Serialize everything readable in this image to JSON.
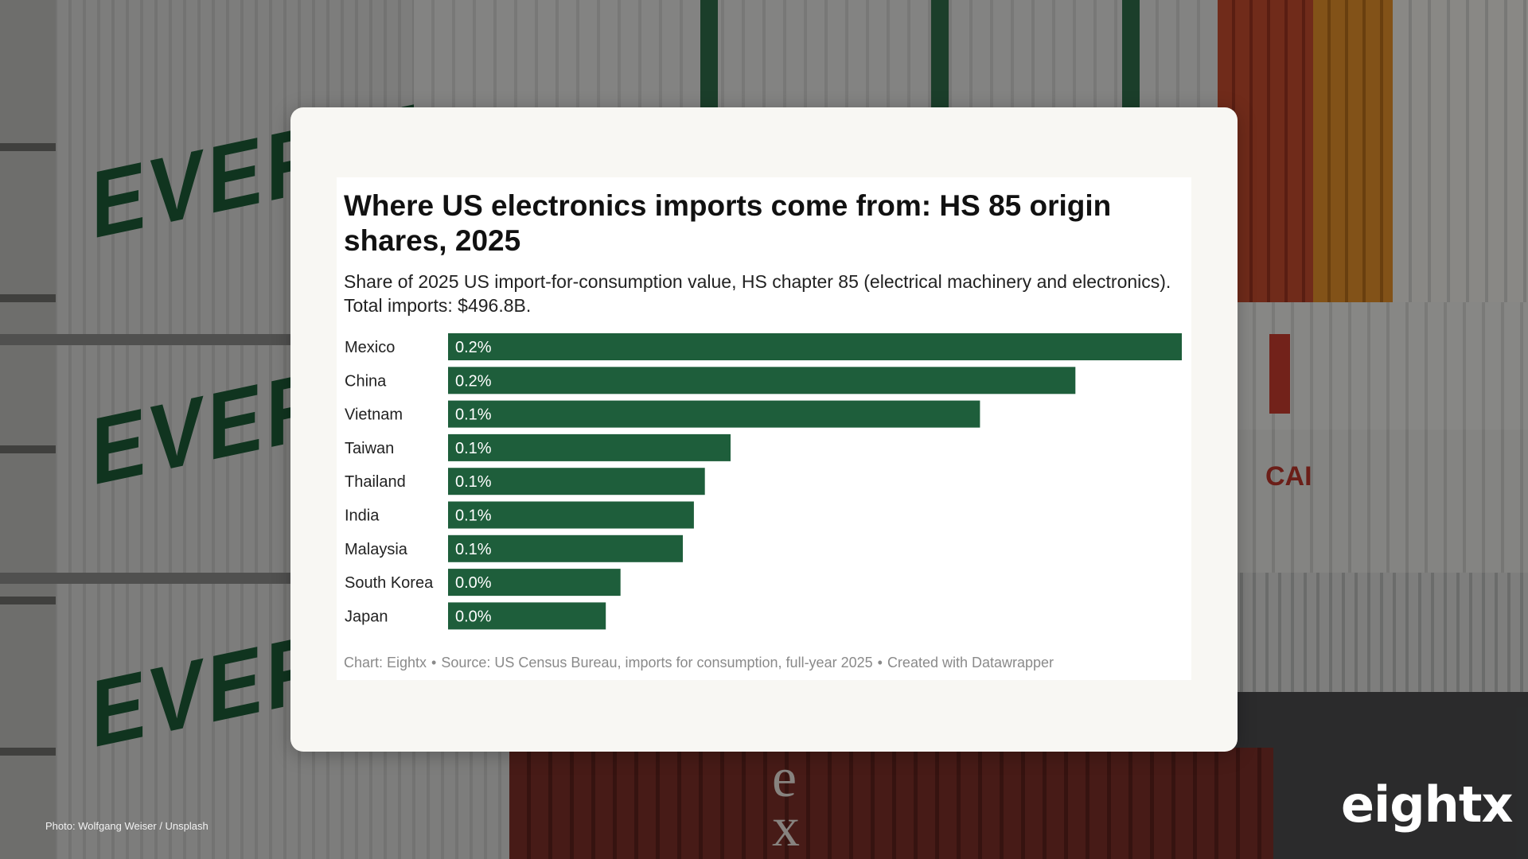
{
  "colors": {
    "bar": "#1e5e3b",
    "bar_label": "#ffffff",
    "category_label": "#222222",
    "card_background": "#f8f7f3",
    "footer_text": "#8a8a8a"
  },
  "chart_data": {
    "type": "bar",
    "orientation": "horizontal",
    "title": "Where US electronics imports come from: HS 85 origin shares, 2025",
    "subtitle": "Share of 2025 US import-for-consumption value, HS chapter 85 (electrical machinery and electronics). Total imports: $496.8B.",
    "categories": [
      "Mexico",
      "China",
      "Vietnam",
      "Taiwan",
      "Thailand",
      "India",
      "Malaysia",
      "South Korea",
      "Japan"
    ],
    "values": [
      0.2,
      0.171,
      0.145,
      0.077,
      0.07,
      0.067,
      0.064,
      0.047,
      0.043
    ],
    "value_labels": [
      "0.2%",
      "0.2%",
      "0.1%",
      "0.1%",
      "0.1%",
      "0.1%",
      "0.1%",
      "0.0%",
      "0.0%"
    ],
    "xlim": [
      0,
      0.2
    ],
    "unit": "%",
    "grid": false,
    "legend": "none"
  },
  "footer": {
    "chart_by": "Chart: Eightx",
    "source": "Source: US Census Bureau, imports for consumption, full-year 2025",
    "created_with": "Created with Datawrapper",
    "separator": "•"
  },
  "photo_credit": "Photo: Wolfgang Weiser / Unsplash",
  "brand": {
    "logo_text": "eightx"
  }
}
